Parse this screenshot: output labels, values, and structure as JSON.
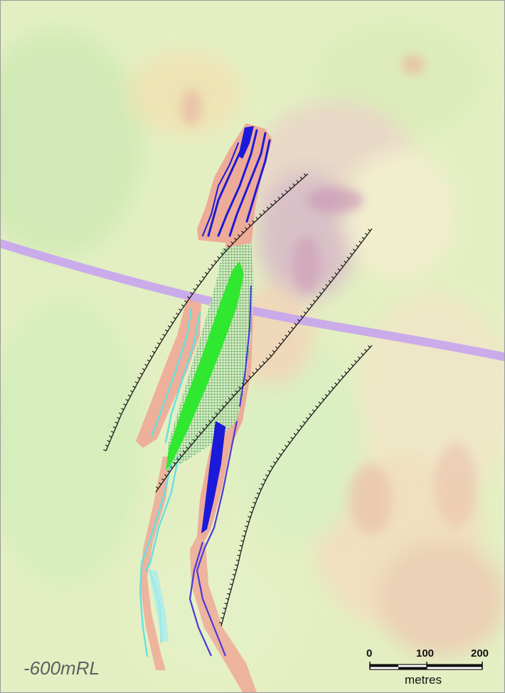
{
  "map": {
    "level_label": "-600mRL",
    "scale_bar": {
      "ticks": [
        "0",
        "100",
        "200"
      ],
      "unit": "metres"
    }
  },
  "legend_colors": {
    "background": "#e6f0c4",
    "magnetic_low": "#cfe8b0",
    "magnetic_mid": "#f3d8a8",
    "magnetic_high": "#d7a6b9",
    "host_unit": "#f0a090",
    "mafic_dyke": "#1a1ad8",
    "ultramafic": "#30e830",
    "sediment_cyan": "#66e0e0",
    "road_purple": "#c8a8ec",
    "fault": "#1b1b1b",
    "hatch_green": "#3a9a3a"
  }
}
